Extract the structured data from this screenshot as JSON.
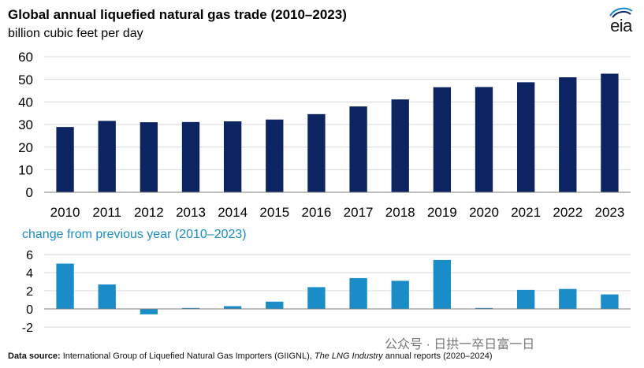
{
  "title": "Global annual liquefied natural gas trade (2010–2023)",
  "subtitle": "billion cubic feet per day",
  "logo_text": "eia",
  "colors": {
    "top_bars": "#0c2461",
    "bottom_bars": "#1a8cc8",
    "subtitle2": "#1a8cc8",
    "grid": "#d9d9d9"
  },
  "chart_data": [
    {
      "type": "bar",
      "title": "Global annual liquefied natural gas trade (2010–2023)",
      "ylabel": "billion cubic feet per day",
      "categories": [
        "2010",
        "2011",
        "2012",
        "2013",
        "2014",
        "2015",
        "2016",
        "2017",
        "2018",
        "2019",
        "2020",
        "2021",
        "2022",
        "2023"
      ],
      "values": [
        28.9,
        31.6,
        31.0,
        31.1,
        31.4,
        32.2,
        34.6,
        38.0,
        41.1,
        46.5,
        46.6,
        48.7,
        50.9,
        52.5
      ],
      "ylim": [
        0,
        60
      ],
      "yticks": [
        "0",
        "10",
        "20",
        "30",
        "40",
        "50",
        "60"
      ],
      "grid": true
    },
    {
      "type": "bar",
      "title": "change from previous year (2010–2023)",
      "categories": [
        "2010",
        "2011",
        "2012",
        "2013",
        "2014",
        "2015",
        "2016",
        "2017",
        "2018",
        "2019",
        "2020",
        "2021",
        "2022",
        "2023"
      ],
      "values": [
        5.0,
        2.7,
        -0.6,
        0.1,
        0.3,
        0.8,
        2.4,
        3.4,
        3.1,
        5.4,
        0.1,
        2.1,
        2.2,
        1.6
      ],
      "ylim": [
        -2,
        6
      ],
      "yticks": [
        "-2",
        "0",
        "2",
        "4",
        "6"
      ],
      "grid": true
    }
  ],
  "footer": {
    "label": "Data source:",
    "text1": " International Group of Liquefied Natural Gas Importers (GIIGNL), ",
    "italic": "The LNG Industry",
    "text2": " annual reports (2020–2024)"
  },
  "watermark": "公众号 · 日拱一卒日富一日"
}
